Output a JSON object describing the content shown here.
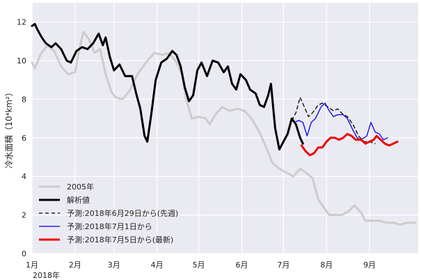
{
  "chart_data": {
    "type": "line",
    "title": "",
    "ylabel": "冷水面積（10⁴km²）",
    "xlabel": "",
    "x_year_label": "2018年",
    "ylim": [
      0,
      13
    ],
    "y_ticks": [
      0,
      2,
      4,
      6,
      8,
      10,
      12
    ],
    "x_domain": [
      "2018-01-01",
      "2018-10-06"
    ],
    "x_ticks": [
      {
        "date": "2018-01-01",
        "label": "1月"
      },
      {
        "date": "2018-02-01",
        "label": "2月"
      },
      {
        "date": "2018-03-01",
        "label": "3月"
      },
      {
        "date": "2018-04-01",
        "label": "4月"
      },
      {
        "date": "2018-05-01",
        "label": "5月"
      },
      {
        "date": "2018-06-01",
        "label": "6月"
      },
      {
        "date": "2018-07-01",
        "label": "7月"
      },
      {
        "date": "2018-08-01",
        "label": "8月"
      },
      {
        "date": "2018-09-01",
        "label": "9月"
      }
    ],
    "grid": true,
    "legend_position": "lower-left",
    "series": [
      {
        "name": "2005年",
        "color": "#cccccc",
        "dash": "",
        "points": [
          [
            "2018-01-01",
            9.9
          ],
          [
            "2018-01-03",
            9.6
          ],
          [
            "2018-01-07",
            10.3
          ],
          [
            "2018-01-12",
            10.8
          ],
          [
            "2018-01-17",
            10.5
          ],
          [
            "2018-01-22",
            9.7
          ],
          [
            "2018-01-27",
            9.3
          ],
          [
            "2018-02-01",
            9.4
          ],
          [
            "2018-02-04",
            10.6
          ],
          [
            "2018-02-07",
            11.5
          ],
          [
            "2018-02-11",
            11.1
          ],
          [
            "2018-02-15",
            10.4
          ],
          [
            "2018-02-19",
            10.6
          ],
          [
            "2018-02-23",
            9.3
          ],
          [
            "2018-02-27",
            8.4
          ],
          [
            "2018-03-02",
            8.1
          ],
          [
            "2018-03-07",
            8.0
          ],
          [
            "2018-03-12",
            8.4
          ],
          [
            "2018-03-18",
            9.3
          ],
          [
            "2018-03-24",
            9.9
          ],
          [
            "2018-03-30",
            10.4
          ],
          [
            "2018-04-05",
            10.3
          ],
          [
            "2018-04-10",
            10.4
          ],
          [
            "2018-04-15",
            9.9
          ],
          [
            "2018-04-19",
            9.3
          ],
          [
            "2018-04-22",
            8.0
          ],
          [
            "2018-04-26",
            7.0
          ],
          [
            "2018-05-01",
            7.1
          ],
          [
            "2018-05-06",
            7.0
          ],
          [
            "2018-05-09",
            6.7
          ],
          [
            "2018-05-13",
            7.2
          ],
          [
            "2018-05-18",
            7.6
          ],
          [
            "2018-05-23",
            7.4
          ],
          [
            "2018-05-29",
            7.5
          ],
          [
            "2018-06-03",
            7.4
          ],
          [
            "2018-06-08",
            7.0
          ],
          [
            "2018-06-13",
            6.4
          ],
          [
            "2018-06-18",
            5.6
          ],
          [
            "2018-06-23",
            4.7
          ],
          [
            "2018-06-28",
            4.4
          ],
          [
            "2018-07-03",
            4.2
          ],
          [
            "2018-07-08",
            4.0
          ],
          [
            "2018-07-13",
            4.4
          ],
          [
            "2018-07-17",
            4.2
          ],
          [
            "2018-07-22",
            3.9
          ],
          [
            "2018-07-26",
            2.8
          ],
          [
            "2018-07-30",
            2.4
          ],
          [
            "2018-08-03",
            2.0
          ],
          [
            "2018-08-08",
            2.0
          ],
          [
            "2018-08-12",
            2.0
          ],
          [
            "2018-08-17",
            2.2
          ],
          [
            "2018-08-21",
            2.5
          ],
          [
            "2018-08-26",
            2.1
          ],
          [
            "2018-08-29",
            1.7
          ],
          [
            "2018-09-03",
            1.7
          ],
          [
            "2018-09-08",
            1.7
          ],
          [
            "2018-09-13",
            1.6
          ],
          [
            "2018-09-18",
            1.6
          ],
          [
            "2018-09-23",
            1.5
          ],
          [
            "2018-09-28",
            1.6
          ],
          [
            "2018-10-04",
            1.6
          ]
        ]
      },
      {
        "name": "解析値",
        "color": "#000000",
        "dash": "",
        "points": [
          [
            "2018-01-01",
            11.8
          ],
          [
            "2018-01-03",
            11.9
          ],
          [
            "2018-01-05",
            11.6
          ],
          [
            "2018-01-08",
            11.2
          ],
          [
            "2018-01-11",
            10.9
          ],
          [
            "2018-01-15",
            10.7
          ],
          [
            "2018-01-18",
            10.9
          ],
          [
            "2018-01-22",
            10.6
          ],
          [
            "2018-01-26",
            10.0
          ],
          [
            "2018-01-29",
            9.9
          ],
          [
            "2018-02-02",
            10.5
          ],
          [
            "2018-02-06",
            10.7
          ],
          [
            "2018-02-10",
            10.6
          ],
          [
            "2018-02-14",
            10.9
          ],
          [
            "2018-02-18",
            11.4
          ],
          [
            "2018-02-21",
            10.8
          ],
          [
            "2018-02-23",
            11.2
          ],
          [
            "2018-02-26",
            10.2
          ],
          [
            "2018-03-01",
            9.5
          ],
          [
            "2018-03-05",
            9.8
          ],
          [
            "2018-03-09",
            9.2
          ],
          [
            "2018-03-14",
            9.2
          ],
          [
            "2018-03-17",
            8.3
          ],
          [
            "2018-03-20",
            7.5
          ],
          [
            "2018-03-23",
            6.1
          ],
          [
            "2018-03-25",
            5.8
          ],
          [
            "2018-03-28",
            7.3
          ],
          [
            "2018-03-31",
            9.0
          ],
          [
            "2018-04-04",
            9.9
          ],
          [
            "2018-04-08",
            10.1
          ],
          [
            "2018-04-12",
            10.5
          ],
          [
            "2018-04-15",
            10.3
          ],
          [
            "2018-04-18",
            9.7
          ],
          [
            "2018-04-21",
            8.6
          ],
          [
            "2018-04-24",
            7.9
          ],
          [
            "2018-04-27",
            8.2
          ],
          [
            "2018-04-30",
            9.5
          ],
          [
            "2018-05-03",
            9.9
          ],
          [
            "2018-05-07",
            9.2
          ],
          [
            "2018-05-11",
            10.0
          ],
          [
            "2018-05-15",
            9.9
          ],
          [
            "2018-05-19",
            9.4
          ],
          [
            "2018-05-22",
            9.7
          ],
          [
            "2018-05-25",
            8.8
          ],
          [
            "2018-05-28",
            8.5
          ],
          [
            "2018-05-31",
            9.3
          ],
          [
            "2018-06-04",
            9.0
          ],
          [
            "2018-06-07",
            8.5
          ],
          [
            "2018-06-11",
            8.3
          ],
          [
            "2018-06-14",
            7.7
          ],
          [
            "2018-06-17",
            7.6
          ],
          [
            "2018-06-20",
            8.2
          ],
          [
            "2018-06-22",
            8.8
          ],
          [
            "2018-06-25",
            6.5
          ],
          [
            "2018-06-28",
            5.4
          ],
          [
            "2018-07-01",
            5.8
          ],
          [
            "2018-07-04",
            6.2
          ],
          [
            "2018-07-07",
            7.0
          ],
          [
            "2018-07-10",
            6.7
          ],
          [
            "2018-07-13",
            6.0
          ],
          [
            "2018-07-15",
            5.7
          ]
        ]
      },
      {
        "name": "予測:2018年6月29日から(先週)",
        "color": "#000000",
        "dash": "5,4",
        "points": [
          [
            "2018-07-07",
            6.9
          ],
          [
            "2018-07-10",
            7.3
          ],
          [
            "2018-07-13",
            8.1
          ],
          [
            "2018-07-16",
            7.6
          ],
          [
            "2018-07-19",
            7.1
          ],
          [
            "2018-07-22",
            7.3
          ],
          [
            "2018-07-26",
            7.7
          ],
          [
            "2018-07-29",
            7.8
          ],
          [
            "2018-08-02",
            7.6
          ],
          [
            "2018-08-06",
            7.4
          ],
          [
            "2018-08-09",
            7.5
          ],
          [
            "2018-08-13",
            7.2
          ],
          [
            "2018-08-16",
            7.1
          ],
          [
            "2018-08-20",
            6.7
          ],
          [
            "2018-08-24",
            6.1
          ],
          [
            "2018-08-28",
            5.8
          ],
          [
            "2018-09-01",
            5.8
          ],
          [
            "2018-09-05",
            5.7
          ]
        ]
      },
      {
        "name": "予測:2018年7月1日から",
        "color": "#0000ee",
        "dash": "",
        "points": [
          [
            "2018-07-09",
            6.8
          ],
          [
            "2018-07-12",
            6.9
          ],
          [
            "2018-07-15",
            6.8
          ],
          [
            "2018-07-18",
            6.1
          ],
          [
            "2018-07-21",
            6.8
          ],
          [
            "2018-07-24",
            7.0
          ],
          [
            "2018-07-28",
            7.6
          ],
          [
            "2018-07-31",
            7.8
          ],
          [
            "2018-08-03",
            7.4
          ],
          [
            "2018-08-06",
            7.1
          ],
          [
            "2018-08-09",
            7.2
          ],
          [
            "2018-08-13",
            7.2
          ],
          [
            "2018-08-16",
            7.0
          ],
          [
            "2018-08-20",
            6.4
          ],
          [
            "2018-08-23",
            6.0
          ],
          [
            "2018-08-26",
            5.9
          ],
          [
            "2018-08-30",
            6.1
          ],
          [
            "2018-09-02",
            6.8
          ],
          [
            "2018-09-05",
            6.3
          ],
          [
            "2018-09-08",
            6.2
          ],
          [
            "2018-09-11",
            5.9
          ],
          [
            "2018-09-14",
            6.0
          ]
        ]
      },
      {
        "name": "予測:2018年7月5日から(最新)",
        "color": "#ee0000",
        "dash": "",
        "points": [
          [
            "2018-07-14",
            5.6
          ],
          [
            "2018-07-17",
            5.3
          ],
          [
            "2018-07-20",
            5.1
          ],
          [
            "2018-07-23",
            5.2
          ],
          [
            "2018-07-26",
            5.5
          ],
          [
            "2018-07-29",
            5.5
          ],
          [
            "2018-08-01",
            5.8
          ],
          [
            "2018-08-04",
            6.0
          ],
          [
            "2018-08-07",
            6.0
          ],
          [
            "2018-08-10",
            5.9
          ],
          [
            "2018-08-13",
            6.0
          ],
          [
            "2018-08-16",
            6.2
          ],
          [
            "2018-08-19",
            6.1
          ],
          [
            "2018-08-22",
            5.9
          ],
          [
            "2018-08-26",
            5.9
          ],
          [
            "2018-08-29",
            5.7
          ],
          [
            "2018-09-01",
            5.8
          ],
          [
            "2018-09-04",
            5.9
          ],
          [
            "2018-09-06",
            6.1
          ],
          [
            "2018-09-09",
            5.9
          ],
          [
            "2018-09-12",
            5.7
          ],
          [
            "2018-09-15",
            5.6
          ],
          [
            "2018-09-18",
            5.7
          ],
          [
            "2018-09-21",
            5.8
          ]
        ]
      }
    ]
  }
}
